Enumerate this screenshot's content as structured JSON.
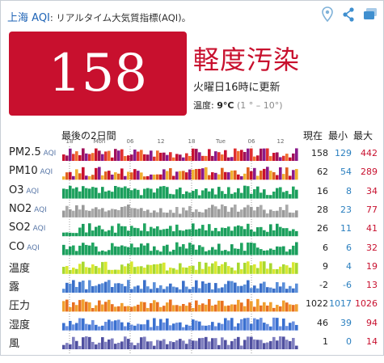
{
  "header": {
    "city": "上海",
    "aqi_label": "AQI",
    "subtitle": ": リアルタイム大気質指標(AQI)。"
  },
  "icons": [
    "location-pin-icon",
    "share-icon",
    "widget-icon"
  ],
  "aqi": {
    "value": "158",
    "level": "軽度汚染",
    "updated": "火曜日16時に更新",
    "temp_label": "温度:",
    "temp_value": "9°C",
    "temp_range": "(1 ° – 10°)",
    "color": "#c8102e"
  },
  "table": {
    "span_label": "最後の2日間",
    "time_labels": [
      "18",
      "Mon",
      "06",
      "12",
      "18",
      "Tue",
      "06",
      "12"
    ],
    "col_current": "現在",
    "col_min": "最小",
    "col_max": "最大",
    "rows": [
      {
        "label": "PM2.5",
        "sub": "AQI",
        "current": "158",
        "min": "129",
        "max": "442",
        "icon": "pm25"
      },
      {
        "label": "PM10",
        "sub": "AQI",
        "current": "62",
        "min": "54",
        "max": "289",
        "icon": "pm10"
      },
      {
        "label": "O3",
        "sub": "AQI",
        "current": "16",
        "min": "8",
        "max": "34",
        "icon": "o3"
      },
      {
        "label": "NO2",
        "sub": "AQI",
        "current": "28",
        "min": "23",
        "max": "77",
        "icon": "no2"
      },
      {
        "label": "SO2",
        "sub": "AQI",
        "current": "26",
        "min": "11",
        "max": "41",
        "icon": "so2"
      },
      {
        "label": "CO",
        "sub": "AQI",
        "current": "6",
        "min": "6",
        "max": "32",
        "icon": "co"
      },
      {
        "label": "温度",
        "sub": "",
        "current": "9",
        "min": "4",
        "max": "19",
        "icon": "temp"
      },
      {
        "label": "露",
        "sub": "",
        "current": "-2",
        "min": "-6",
        "max": "13",
        "icon": "dew"
      },
      {
        "label": "圧力",
        "sub": "",
        "current": "1022",
        "min": "1017",
        "max": "1026",
        "icon": "pressure"
      },
      {
        "label": "湿度",
        "sub": "",
        "current": "46",
        "min": "39",
        "max": "94",
        "icon": "humidity"
      },
      {
        "label": "風",
        "sub": "",
        "current": "1",
        "min": "0",
        "max": "14",
        "icon": "wind"
      }
    ]
  }
}
